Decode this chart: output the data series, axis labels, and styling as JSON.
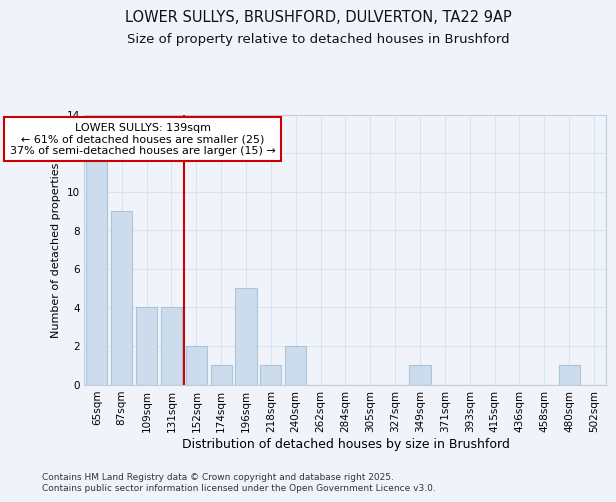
{
  "title1": "LOWER SULLYS, BRUSHFORD, DULVERTON, TA22 9AP",
  "title2": "Size of property relative to detached houses in Brushford",
  "xlabel": "Distribution of detached houses by size in Brushford",
  "ylabel": "Number of detached properties",
  "bar_labels": [
    "65sqm",
    "87sqm",
    "109sqm",
    "131sqm",
    "152sqm",
    "174sqm",
    "196sqm",
    "218sqm",
    "240sqm",
    "262sqm",
    "284sqm",
    "305sqm",
    "327sqm",
    "349sqm",
    "371sqm",
    "393sqm",
    "415sqm",
    "436sqm",
    "458sqm",
    "480sqm",
    "502sqm"
  ],
  "bar_values": [
    12,
    9,
    4,
    4,
    2,
    1,
    5,
    1,
    2,
    0,
    0,
    0,
    0,
    1,
    0,
    0,
    0,
    0,
    0,
    1,
    0
  ],
  "bar_color": "#ccdcec",
  "bar_edgecolor": "#aac4d8",
  "vline_x": 3.5,
  "vline_color": "#cc0000",
  "annotation_title": "LOWER SULLYS: 139sqm",
  "annotation_line1": "← 61% of detached houses are smaller (25)",
  "annotation_line2": "37% of semi-detached houses are larger (15) →",
  "annotation_box_color": "#ffffff",
  "annotation_box_edge": "#cc0000",
  "ylim": [
    0,
    14
  ],
  "yticks": [
    0,
    2,
    4,
    6,
    8,
    10,
    12,
    14
  ],
  "background_color": "#f0f4fa",
  "grid_color": "#d8e4f0",
  "footer": "Contains HM Land Registry data © Crown copyright and database right 2025.\nContains public sector information licensed under the Open Government Licence v3.0.",
  "title_fontsize": 10.5,
  "subtitle_fontsize": 9.5,
  "tick_fontsize": 7.5,
  "ylabel_fontsize": 8,
  "xlabel_fontsize": 9,
  "annotation_fontsize": 8,
  "footer_fontsize": 6.5
}
